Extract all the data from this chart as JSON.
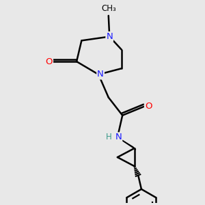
{
  "background_color": "#e8e8e8",
  "atom_colors": {
    "N": "#1a1aff",
    "O": "#ff0000",
    "C": "#000000",
    "H": "#3a9a8a"
  },
  "bond_color": "#000000",
  "bond_width": 1.8,
  "figsize": [
    3.0,
    3.0
  ],
  "dpi": 100,
  "xlim": [
    0,
    10
  ],
  "ylim": [
    0,
    10
  ]
}
